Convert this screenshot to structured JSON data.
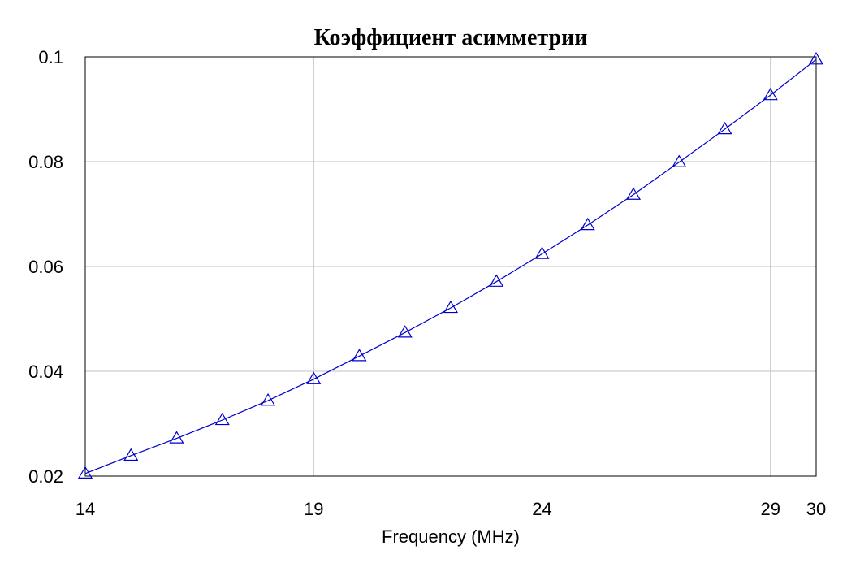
{
  "chart_data": {
    "type": "line",
    "title": "Коэффициент асимметрии",
    "xlabel": "Frequency (MHz)",
    "ylabel": "",
    "xlim": [
      14,
      30
    ],
    "ylim": [
      0.02,
      0.1
    ],
    "x_ticks": [
      14,
      19,
      24,
      29,
      30
    ],
    "x_tick_labels": [
      "14",
      "19",
      "24",
      "29",
      "30"
    ],
    "y_ticks": [
      0.02,
      0.04,
      0.06,
      0.08,
      0.1
    ],
    "y_tick_labels": [
      "0.02",
      "0.04",
      "0.06",
      "0.08",
      "0.1"
    ],
    "grid": true,
    "series": [
      {
        "marker": "triangle",
        "color": "#0000cc",
        "x": [
          14,
          15,
          16,
          17,
          18,
          19,
          20,
          21,
          22,
          23,
          24,
          25,
          26,
          27,
          28,
          29,
          30
        ],
        "y": [
          0.0205,
          0.0239,
          0.0272,
          0.0307,
          0.0344,
          0.0385,
          0.0429,
          0.0474,
          0.0521,
          0.0571,
          0.0624,
          0.0679,
          0.0737,
          0.0799,
          0.0862,
          0.0927,
          0.0995
        ]
      }
    ]
  },
  "colors": {
    "series": "#0000cc",
    "grid": "#c0c0c0",
    "frame": "#000000",
    "background": "#ffffff"
  }
}
